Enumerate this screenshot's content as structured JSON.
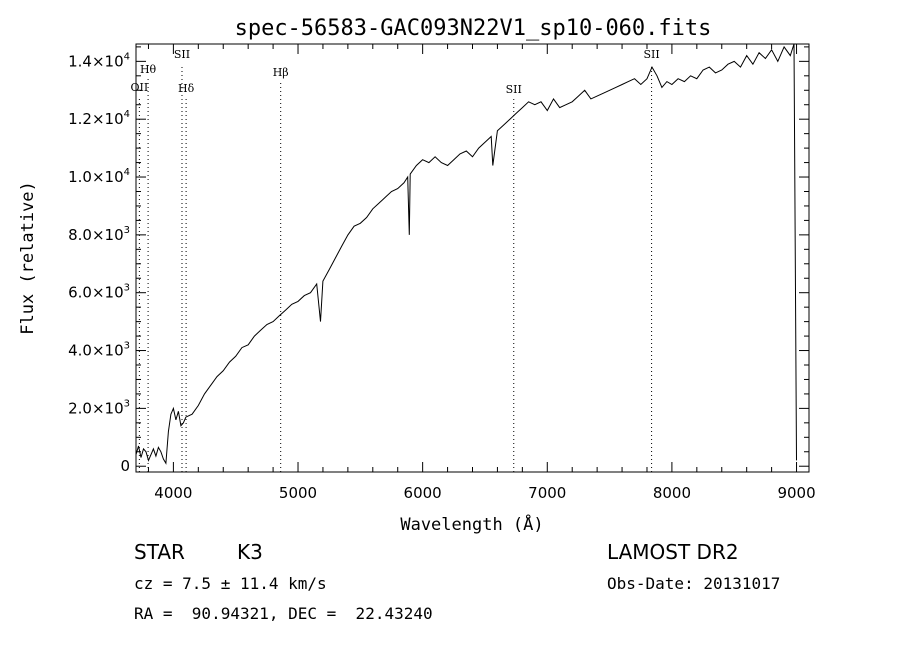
{
  "chart_data": {
    "type": "line",
    "title": "spec-56583-GAC093N22V1_sp10-060.fits",
    "xlabel": "Wavelength (Å)",
    "ylabel": "Flux (relative)",
    "xlim": [
      3700,
      9100
    ],
    "ylim": [
      -200,
      14600
    ],
    "x_ticks": [
      4000,
      5000,
      6000,
      7000,
      8000,
      9000
    ],
    "x_tick_labels": [
      "4000",
      "5000",
      "6000",
      "7000",
      "8000",
      "9000"
    ],
    "y_ticks": [
      {
        "value": 0,
        "mant": "0",
        "exp": ""
      },
      {
        "value": 2000,
        "mant": "2.0×10",
        "exp": "3"
      },
      {
        "value": 4000,
        "mant": "4.0×10",
        "exp": "3"
      },
      {
        "value": 6000,
        "mant": "6.0×10",
        "exp": "3"
      },
      {
        "value": 8000,
        "mant": "8.0×10",
        "exp": "3"
      },
      {
        "value": 10000,
        "mant": "1.0×10",
        "exp": "4"
      },
      {
        "value": 12000,
        "mant": "1.2×10",
        "exp": "4"
      },
      {
        "value": 14000,
        "mant": "1.4×10",
        "exp": "4"
      }
    ],
    "grid": false,
    "lines": [
      {
        "name": "OII",
        "wavelength": 3727
      },
      {
        "name": "Hθ",
        "wavelength": 3797
      },
      {
        "name": "SII",
        "wavelength": 4069
      },
      {
        "name": "Hδ",
        "wavelength": 4102
      },
      {
        "name": "Hβ",
        "wavelength": 4861
      },
      {
        "name": "SII",
        "wavelength": 6731
      },
      {
        "name": "SII",
        "wavelength": 7837
      }
    ],
    "series": [
      {
        "x": [
          3700,
          3720,
          3740,
          3760,
          3780,
          3800,
          3820,
          3840,
          3860,
          3880,
          3900,
          3920,
          3940,
          3960,
          3980,
          4000,
          4020,
          4040,
          4060,
          4080,
          4100,
          4150,
          4200,
          4250,
          4300,
          4350,
          4400,
          4450,
          4500,
          4550,
          4600,
          4650,
          4700,
          4750,
          4800,
          4850,
          4900,
          4950,
          5000,
          5050,
          5100,
          5150,
          5180,
          5200,
          5250,
          5300,
          5350,
          5400,
          5450,
          5500,
          5550,
          5600,
          5650,
          5700,
          5750,
          5800,
          5850,
          5880,
          5893,
          5900,
          5950,
          6000,
          6050,
          6100,
          6150,
          6200,
          6250,
          6300,
          6350,
          6400,
          6450,
          6500,
          6550,
          6563,
          6600,
          6650,
          6700,
          6750,
          6800,
          6850,
          6900,
          6950,
          7000,
          7050,
          7100,
          7150,
          7200,
          7250,
          7300,
          7350,
          7400,
          7450,
          7500,
          7550,
          7600,
          7650,
          7700,
          7750,
          7800,
          7840,
          7880,
          7920,
          7960,
          8000,
          8050,
          8100,
          8150,
          8200,
          8250,
          8300,
          8350,
          8400,
          8450,
          8500,
          8550,
          8600,
          8650,
          8700,
          8750,
          8800,
          8850,
          8900,
          8950,
          8980,
          9000
        ],
        "y": [
          400,
          700,
          300,
          600,
          500,
          200,
          400,
          600,
          350,
          650,
          500,
          250,
          100,
          1200,
          1800,
          2000,
          1600,
          1900,
          1400,
          1500,
          1700,
          1800,
          2100,
          2500,
          2800,
          3100,
          3300,
          3600,
          3800,
          4100,
          4200,
          4500,
          4700,
          4900,
          5000,
          5200,
          5400,
          5600,
          5700,
          5900,
          6000,
          6300,
          5000,
          6400,
          6800,
          7200,
          7600,
          8000,
          8300,
          8400,
          8600,
          8900,
          9100,
          9300,
          9500,
          9600,
          9800,
          10000,
          8000,
          10100,
          10400,
          10600,
          10500,
          10700,
          10500,
          10400,
          10600,
          10800,
          10900,
          10700,
          11000,
          11200,
          11400,
          10400,
          11600,
          11800,
          12000,
          12200,
          12400,
          12600,
          12500,
          12600,
          12300,
          12700,
          12400,
          12500,
          12600,
          12800,
          13000,
          12700,
          12800,
          12900,
          13000,
          13100,
          13200,
          13300,
          13400,
          13200,
          13400,
          13800,
          13500,
          13100,
          13300,
          13200,
          13400,
          13300,
          13500,
          13400,
          13700,
          13800,
          13600,
          13700,
          13900,
          14000,
          13800,
          14200,
          13900,
          14300,
          14100,
          14400,
          14000,
          14500,
          14200,
          14600,
          200
        ]
      }
    ]
  },
  "info": {
    "object_class": "STAR",
    "subclass": "K3",
    "survey": "LAMOST DR2",
    "redshift": "cz = 7.5 ± 11.4 km/s",
    "obs_date": "Obs-Date: 20131017",
    "coords": "RA =  90.94321, DEC =  22.43240"
  }
}
